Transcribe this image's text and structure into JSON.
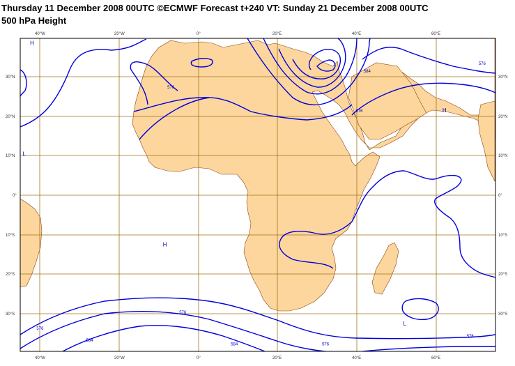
{
  "title": {
    "line1": "Thursday 11 December 2008 00UTC ©ECMWF Forecast t+240 VT: Sunday 21 December 2008 00UTC",
    "line2": "500 hPa Height"
  },
  "colors": {
    "land": "#fcd69c",
    "coast": "#8b4513",
    "grid": "#a0701a",
    "contour": "#0000dd",
    "sea": "#ffffff"
  },
  "axes": {
    "lat_labels": [
      "30°N",
      "20°N",
      "10°N",
      "0°",
      "10°S",
      "20°S",
      "30°S"
    ],
    "lon_labels": [
      "40°W",
      "20°W",
      "0°",
      "20°E",
      "40°E",
      "60°E"
    ]
  },
  "pressure_centers": [
    {
      "label": "H",
      "lon": -42,
      "lat": 38
    },
    {
      "label": "L",
      "lon": -44,
      "lat": 10
    },
    {
      "label": "H",
      "lon": 62,
      "lat": 21
    },
    {
      "label": "H",
      "lon": -8.5,
      "lat": -13
    },
    {
      "label": "L",
      "lon": 52,
      "lat": -33
    }
  ],
  "contour_labels": [
    {
      "text": "576",
      "lon": -7,
      "lat": 27
    },
    {
      "text": "584",
      "lon": 42.5,
      "lat": 31
    },
    {
      "text": "576",
      "lon": 40.5,
      "lat": 21
    },
    {
      "text": "576",
      "lon": 71.5,
      "lat": 33
    },
    {
      "text": "576",
      "lon": -4,
      "lat": -30
    },
    {
      "text": "576",
      "lon": -40,
      "lat": -34
    },
    {
      "text": "584",
      "lon": -27.5,
      "lat": -37
    },
    {
      "text": "584",
      "lon": 9,
      "lat": -38
    },
    {
      "text": "576",
      "lon": 32,
      "lat": -38
    },
    {
      "text": "576",
      "lon": 68.5,
      "lat": -36
    }
  ]
}
